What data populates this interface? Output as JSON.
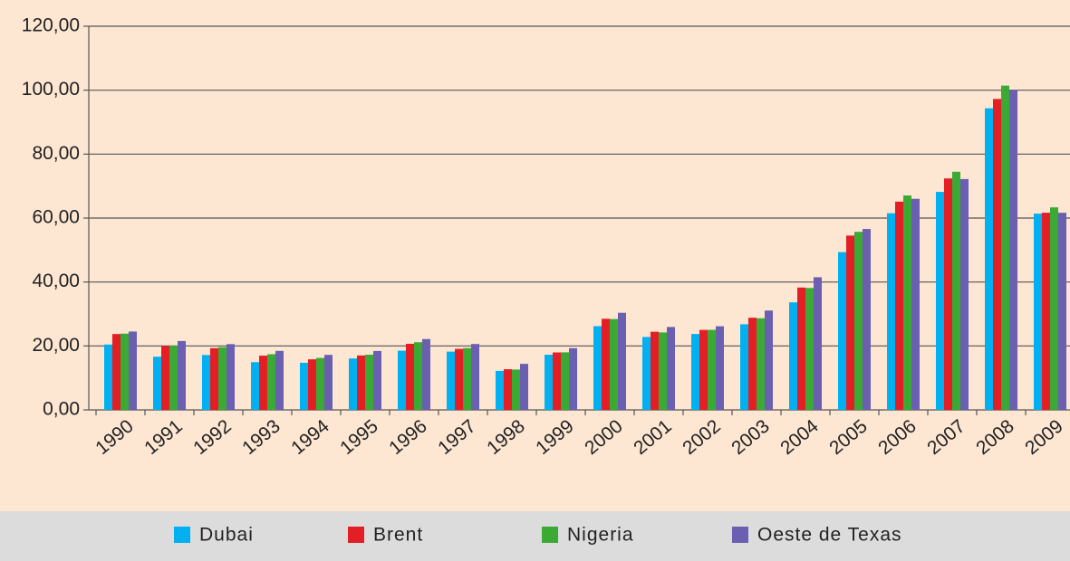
{
  "chart_data": {
    "type": "bar",
    "categories": [
      "1990",
      "1991",
      "1992",
      "1993",
      "1994",
      "1995",
      "1996",
      "1997",
      "1998",
      "1999",
      "2000",
      "2001",
      "2002",
      "2003",
      "2004",
      "2005",
      "2006",
      "2007",
      "2008",
      "2009"
    ],
    "series": [
      {
        "name": "Dubai",
        "color": "#00b0f0",
        "values": [
          20.45,
          16.63,
          17.17,
          14.93,
          14.74,
          16.1,
          18.52,
          18.23,
          12.21,
          17.25,
          26.2,
          22.81,
          23.74,
          26.78,
          33.64,
          49.35,
          61.5,
          68.19,
          94.34,
          61.39
        ]
      },
      {
        "name": "Brent",
        "color": "#e31e24",
        "values": [
          23.73,
          20.0,
          19.32,
          16.97,
          15.82,
          17.02,
          20.67,
          19.09,
          12.72,
          17.97,
          28.5,
          24.44,
          25.02,
          28.83,
          38.27,
          54.52,
          65.14,
          72.39,
          97.26,
          61.67
        ]
      },
      {
        "name": "Nigeria",
        "color": "#3aaa35",
        "values": [
          23.85,
          20.11,
          19.61,
          17.41,
          16.25,
          17.26,
          21.16,
          19.33,
          12.62,
          18.0,
          28.42,
          24.23,
          25.04,
          28.66,
          38.13,
          55.69,
          67.07,
          74.48,
          101.43,
          63.35
        ]
      },
      {
        "name": "Oeste de Texas",
        "color": "#6a5fb0",
        "values": [
          24.5,
          21.54,
          20.57,
          18.45,
          17.21,
          18.42,
          22.16,
          20.61,
          14.39,
          19.31,
          30.37,
          25.93,
          26.16,
          31.07,
          41.49,
          56.59,
          66.02,
          72.2,
          100.06,
          61.65
        ]
      }
    ],
    "ylim": [
      0,
      120
    ],
    "yticks": [
      {
        "value": 0,
        "label": "0,00"
      },
      {
        "value": 20,
        "label": "20,00"
      },
      {
        "value": 40,
        "label": "40,00"
      },
      {
        "value": 60,
        "label": "60,00"
      },
      {
        "value": 80,
        "label": "80,00"
      },
      {
        "value": 100,
        "label": "100,00"
      },
      {
        "value": 120,
        "label": "120,00"
      }
    ],
    "grid": true
  }
}
